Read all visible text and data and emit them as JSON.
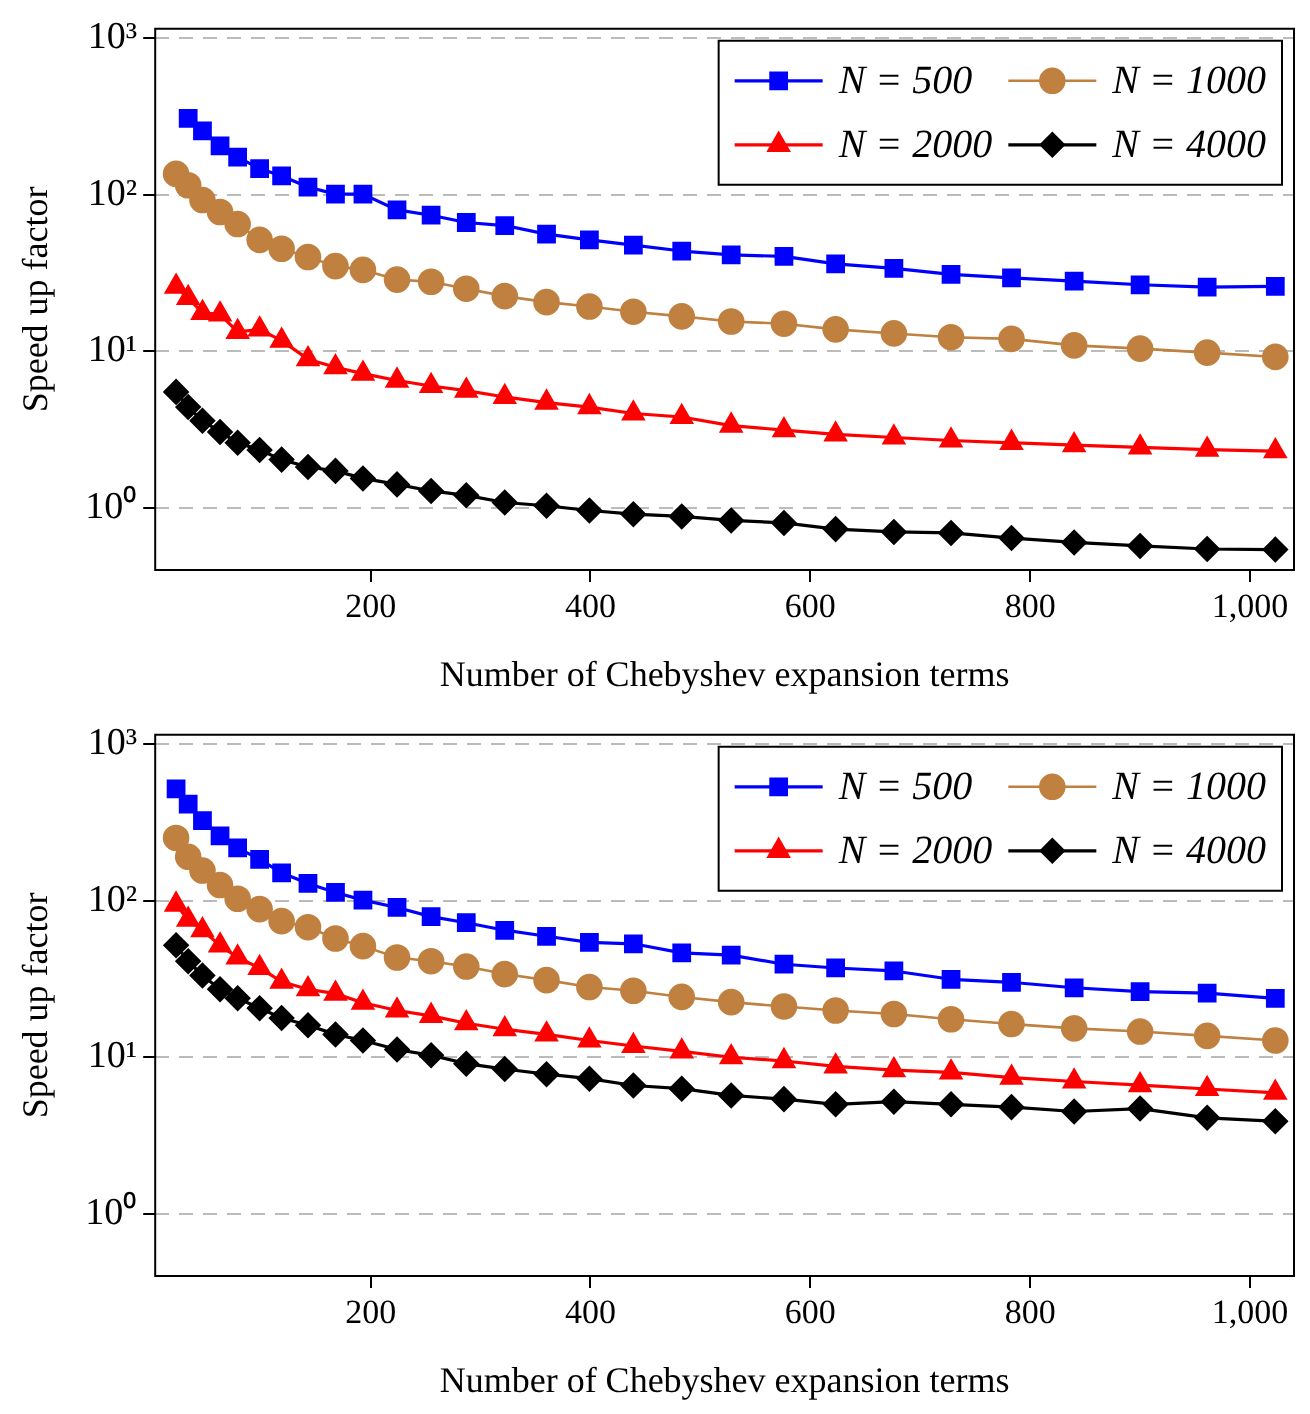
{
  "chart_data": [
    {
      "type": "line",
      "xlabel": "Number of Chebyshev expansion terms",
      "ylabel": "Speed up factor",
      "log": "y",
      "grid": "y",
      "legend": "top right",
      "line_style": "solid",
      "x": [
        23,
        34,
        47,
        63,
        79,
        99,
        119,
        143,
        168,
        193,
        224,
        255,
        287,
        322,
        360,
        399,
        439,
        483,
        528,
        576,
        623,
        676,
        728,
        783,
        840,
        900,
        961,
        1023
      ],
      "xlim": [
        4,
        1040
      ],
      "xticks": [
        200,
        400,
        600,
        800,
        {
          "value": 1000,
          "label": "1,000"
        }
      ],
      "ylim": [
        0.4,
        1150
      ],
      "yticks": [
        {
          "value": 1,
          "label": "10⁰"
        },
        {
          "value": 10,
          "label": "10¹"
        },
        {
          "value": 100,
          "label": "10²"
        },
        {
          "value": 1000,
          "label": "10³"
        }
      ],
      "series": [
        {
          "name": "N = 500",
          "color": "#0000ff",
          "marker": "square",
          "values": [
            null,
            308,
            256,
            205,
            174,
            147,
            132,
            112,
            101,
            101,
            80,
            74,
            66.5,
            63.6,
            56,
            51.5,
            47.7,
            43.7,
            41.3,
            40.4,
            36.2,
            33.9,
            31,
            29.4,
            28.1,
            26.6,
            25.7,
            26
          ]
        },
        {
          "name": "N = 1000",
          "color": "#bf8040",
          "marker": "circle",
          "values": [
            136,
            115,
            92.5,
            77.6,
            65,
            51.5,
            45.2,
            40,
            35,
            33.1,
            28.7,
            27.8,
            25.1,
            22.5,
            20.6,
            19.3,
            17.9,
            16.7,
            15.5,
            15,
            13.8,
            13,
            12.3,
            12,
            10.9,
            10.4,
            9.8,
            9.2
          ]
        },
        {
          "name": "N = 2000",
          "color": "#ff0000",
          "marker": "triangle",
          "values": [
            25.9,
            21.9,
            17.6,
            17.2,
            13.3,
            13.8,
            11.7,
            8.9,
            7.9,
            7.2,
            6.5,
            6,
            5.6,
            5.1,
            4.7,
            4.4,
            4,
            3.8,
            3.35,
            3.13,
            2.94,
            2.81,
            2.69,
            2.6,
            2.51,
            2.43,
            2.35,
            2.3
          ]
        },
        {
          "name": "N = 4000",
          "color": "#000000",
          "marker": "diamond",
          "values": [
            5.5,
            4.4,
            3.6,
            3.05,
            2.6,
            2.34,
            2.03,
            1.82,
            1.72,
            1.54,
            1.41,
            1.28,
            1.2,
            1.08,
            1.03,
            0.96,
            0.91,
            0.88,
            0.83,
            0.8,
            0.73,
            0.7,
            0.69,
            0.64,
            0.6,
            0.57,
            0.545,
            0.54
          ]
        }
      ]
    },
    {
      "type": "line",
      "xlabel": "Number of Chebyshev expansion terms",
      "ylabel": "Speed up factor",
      "log": "y",
      "grid": "y",
      "legend": "top right",
      "line_style": "solid",
      "x": [
        23,
        34,
        47,
        63,
        79,
        99,
        119,
        143,
        168,
        193,
        224,
        255,
        287,
        322,
        360,
        399,
        439,
        483,
        528,
        576,
        623,
        676,
        728,
        783,
        840,
        900,
        961,
        1023
      ],
      "xlim": [
        4,
        1040
      ],
      "xticks": [
        200,
        400,
        600,
        800,
        {
          "value": 1000,
          "label": "1,000"
        }
      ],
      "ylim": [
        0.4,
        1150
      ],
      "yticks": [
        {
          "value": 1,
          "label": "10⁰"
        },
        {
          "value": 10,
          "label": "10¹"
        },
        {
          "value": 100,
          "label": "10²"
        },
        {
          "value": 1000,
          "label": "10³"
        }
      ],
      "series": [
        {
          "name": "N = 500",
          "color": "#0000ff",
          "marker": "square",
          "values": [
            519,
            415,
            325,
            260,
            218,
            184,
            151,
            129,
            113,
            101,
            90.6,
            79.2,
            72.4,
            64.8,
            59.3,
            54.2,
            53.1,
            46.5,
            44.9,
            39.3,
            37.2,
            35.6,
            31.5,
            30.1,
            27.8,
            26.3,
            25.7,
            23.8
          ]
        },
        {
          "name": "N = 1000",
          "color": "#bf8040",
          "marker": "circle",
          "values": [
            252,
            191,
            156,
            126,
            103,
            88.5,
            74.1,
            67.8,
            57.4,
            51.3,
            43.4,
            41.1,
            38,
            34,
            31.1,
            28.1,
            26.6,
            24.3,
            22.5,
            21.1,
            19.9,
            18.9,
            17.5,
            16.3,
            15.3,
            14.6,
            13.7,
            12.8
          ]
        },
        {
          "name": "N = 2000",
          "color": "#ff0000",
          "marker": "triangle",
          "values": [
            94.6,
            75.7,
            64.8,
            51.9,
            43.4,
            37.2,
            30.4,
            27.2,
            25.5,
            22.3,
            19.9,
            18.4,
            16.5,
            15.1,
            14,
            12.8,
            11.8,
            10.9,
            10,
            9.46,
            8.75,
            8.28,
            8,
            7.41,
            7,
            6.63,
            6.27,
            5.93
          ]
        },
        {
          "name": "N = 4000",
          "color": "#000000",
          "marker": "diamond",
          "values": [
            51.9,
            41.1,
            33.3,
            27.2,
            23.8,
            20.6,
            17.8,
            16,
            14,
            12.8,
            11.2,
            10.3,
            9.1,
            8.4,
            7.8,
            7.3,
            6.6,
            6.3,
            5.7,
            5.4,
            5,
            5.2,
            5,
            4.8,
            4.5,
            4.7,
            4.1,
            3.9
          ]
        }
      ]
    }
  ]
}
